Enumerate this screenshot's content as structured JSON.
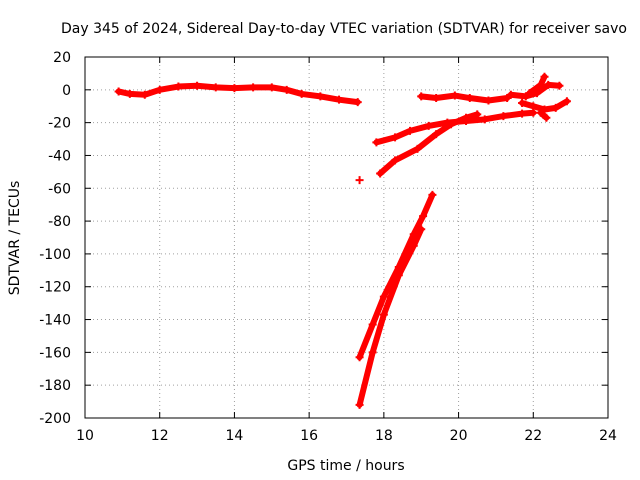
{
  "chart_data": {
    "type": "scatter",
    "title": "Day 345 of 2024, Sidereal Day-to-day VTEC variation (SDTVAR) for receiver savo",
    "xlabel": "GPS time / hours",
    "ylabel": "SDTVAR / TECUs",
    "xlim": [
      10,
      24
    ],
    "ylim": [
      -200,
      20
    ],
    "xticks": [
      "10",
      "12",
      "14",
      "16",
      "18",
      "20",
      "22",
      "24"
    ],
    "yticks": [
      "20",
      "0",
      "-20",
      "-40",
      "-60",
      "-80",
      "-100",
      "-120",
      "-140",
      "-160",
      "-180",
      "-200"
    ],
    "grid": true,
    "legend": false,
    "marker": "plus",
    "color": "#ff0000",
    "series": [
      {
        "points": [
          [
            10.9,
            -1
          ],
          [
            11.2,
            -2.5
          ],
          [
            11.6,
            -3
          ],
          [
            12.0,
            0
          ],
          [
            12.5,
            2
          ],
          [
            13.0,
            2.5
          ],
          [
            13.5,
            1.5
          ],
          [
            14.0,
            1
          ],
          [
            14.5,
            1.5
          ],
          [
            15.0,
            1.5
          ],
          [
            15.4,
            0
          ],
          [
            15.8,
            -2.5
          ],
          [
            16.3,
            -4
          ],
          [
            16.8,
            -6
          ],
          [
            17.3,
            -7.5
          ]
        ]
      },
      {
        "points": [
          [
            17.35,
            -55
          ]
        ]
      },
      {
        "points": [
          [
            17.35,
            -163
          ],
          [
            17.7,
            -143
          ],
          [
            18.0,
            -126
          ],
          [
            18.4,
            -108
          ],
          [
            18.8,
            -88
          ],
          [
            19.05,
            -77
          ],
          [
            19.3,
            -64
          ]
        ]
      },
      {
        "points": [
          [
            17.35,
            -192
          ],
          [
            17.7,
            -160
          ],
          [
            18.0,
            -137
          ],
          [
            18.4,
            -113
          ],
          [
            18.8,
            -95
          ],
          [
            19.0,
            -85
          ]
        ]
      },
      {
        "points": [
          [
            17.9,
            -51
          ],
          [
            18.3,
            -43
          ],
          [
            18.9,
            -36
          ],
          [
            19.4,
            -27
          ],
          [
            19.8,
            -21
          ],
          [
            20.2,
            -17
          ],
          [
            20.5,
            -15
          ]
        ]
      },
      {
        "points": [
          [
            17.8,
            -32
          ],
          [
            18.3,
            -29
          ],
          [
            18.7,
            -25
          ],
          [
            19.2,
            -22
          ],
          [
            19.7,
            -20
          ],
          [
            20.2,
            -19
          ],
          [
            20.7,
            -18
          ],
          [
            21.2,
            -16
          ],
          [
            21.7,
            -14.5
          ],
          [
            22.0,
            -14
          ]
        ]
      },
      {
        "points": [
          [
            19.0,
            -4
          ],
          [
            19.4,
            -5
          ],
          [
            19.9,
            -3.5
          ],
          [
            20.3,
            -5
          ],
          [
            20.8,
            -6.5
          ],
          [
            21.3,
            -5
          ]
        ]
      },
      {
        "points": [
          [
            21.4,
            -3
          ],
          [
            21.8,
            -4
          ],
          [
            22.1,
            -2
          ],
          [
            22.4,
            3
          ],
          [
            22.7,
            2.5
          ]
        ]
      },
      {
        "points": [
          [
            21.7,
            -8
          ],
          [
            22.0,
            -10
          ],
          [
            22.3,
            -12
          ],
          [
            22.6,
            -11
          ],
          [
            22.9,
            -7
          ]
        ]
      },
      {
        "points": [
          [
            21.9,
            -2
          ],
          [
            22.2,
            3
          ],
          [
            22.3,
            8
          ]
        ]
      },
      {
        "points": [
          [
            22.2,
            -14
          ],
          [
            22.35,
            -17
          ]
        ]
      }
    ]
  }
}
